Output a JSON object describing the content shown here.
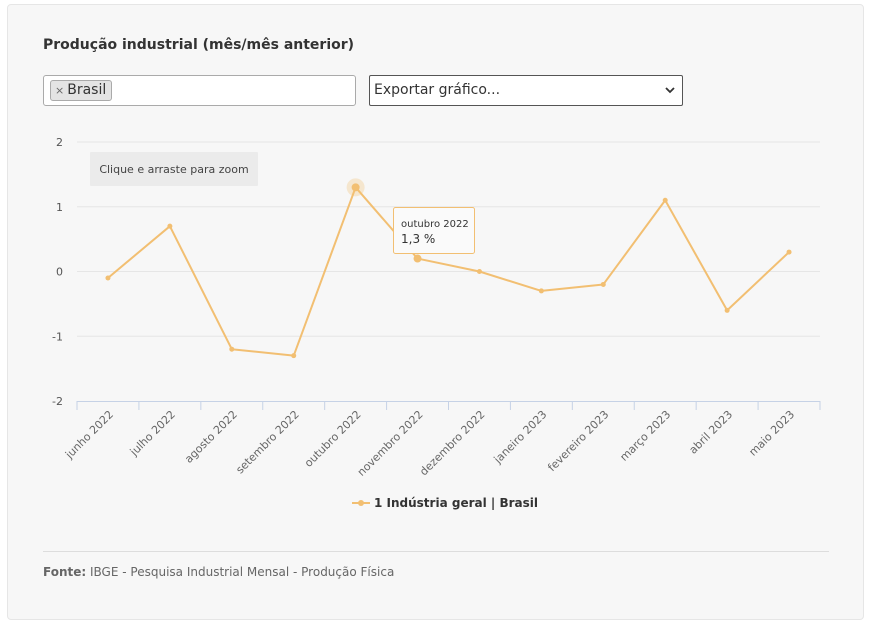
{
  "title": "Produção industrial (mês/mês anterior)",
  "filter": {
    "tag_remove": "×",
    "tag_label": "Brasil"
  },
  "export": {
    "label": "Exportar gráfico...",
    "arrow": "⌄"
  },
  "zoom_hint": "Clique e arraste para zoom",
  "tooltip": {
    "category": "outubro 2022",
    "value": "1,3 %"
  },
  "source": {
    "label": "Fonte:",
    "text": "IBGE - Pesquisa Industrial Mensal - Produção Física"
  },
  "colors": {
    "series": "#f2bf72",
    "tooltip_border": "#f2bf72"
  },
  "chart_data": {
    "type": "line",
    "categories": [
      "junho 2022",
      "julho 2022",
      "agosto 2022",
      "setembro 2022",
      "outubro 2022",
      "novembro 2022",
      "dezembro 2022",
      "janeiro 2023",
      "fevereiro 2023",
      "março 2023",
      "abril 2023",
      "maio 2023"
    ],
    "series": [
      {
        "name": "1 Indústria geral | Brasil",
        "values": [
          -0.1,
          0.7,
          -1.2,
          -1.3,
          1.3,
          0.2,
          0.0,
          -0.3,
          -0.2,
          1.1,
          -0.6,
          0.3
        ]
      }
    ],
    "yticks": [
      "2",
      "1",
      "0",
      "-1",
      "-2"
    ],
    "ylim": [
      -2,
      2
    ],
    "grid": true,
    "legend": "bottom-center",
    "highlighted_index": 4
  }
}
